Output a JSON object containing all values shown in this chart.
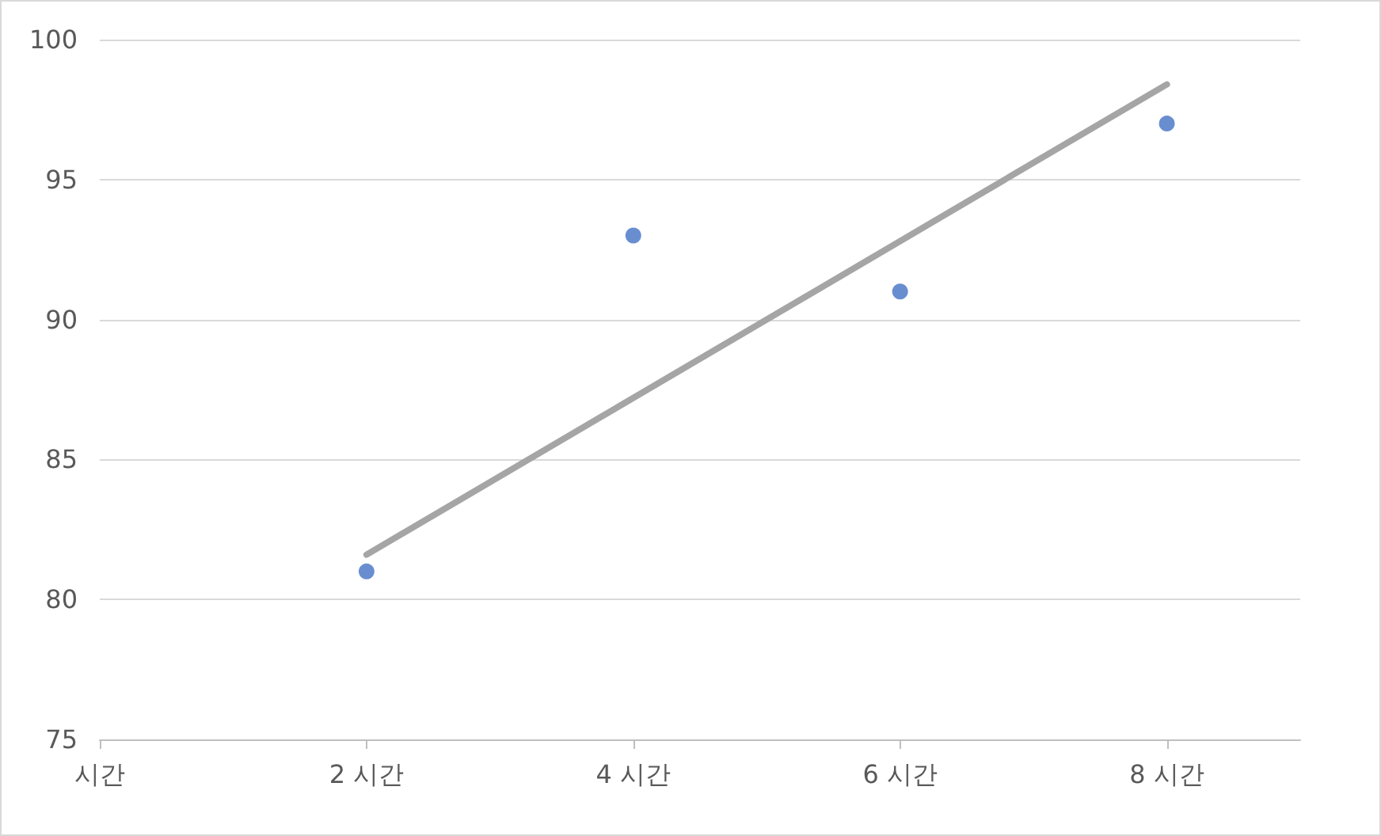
{
  "chart_data": {
    "type": "scatter",
    "series": [
      {
        "color": "#4472c4",
        "x": [
          2,
          4,
          6,
          8
        ],
        "values": [
          81,
          93,
          91,
          97
        ]
      },
      {
        "type": "line",
        "color": "#a5a5a5",
        "x": [
          2,
          8
        ],
        "values": [
          81.6,
          98.4
        ],
        "marker": "none"
      }
    ],
    "xlim": [
      0,
      9
    ],
    "xticks": [
      {
        "value": 0,
        "label": "시간"
      },
      {
        "value": 2,
        "label": "2 시간"
      },
      {
        "value": 4,
        "label": "4 시간"
      },
      {
        "value": 6,
        "label": "6 시간"
      },
      {
        "value": 8,
        "label": "8 시간"
      }
    ],
    "ylim": [
      75,
      100
    ],
    "yticks": [
      75,
      80,
      85,
      90,
      95,
      100
    ],
    "grid": "y",
    "marker": "circle"
  }
}
